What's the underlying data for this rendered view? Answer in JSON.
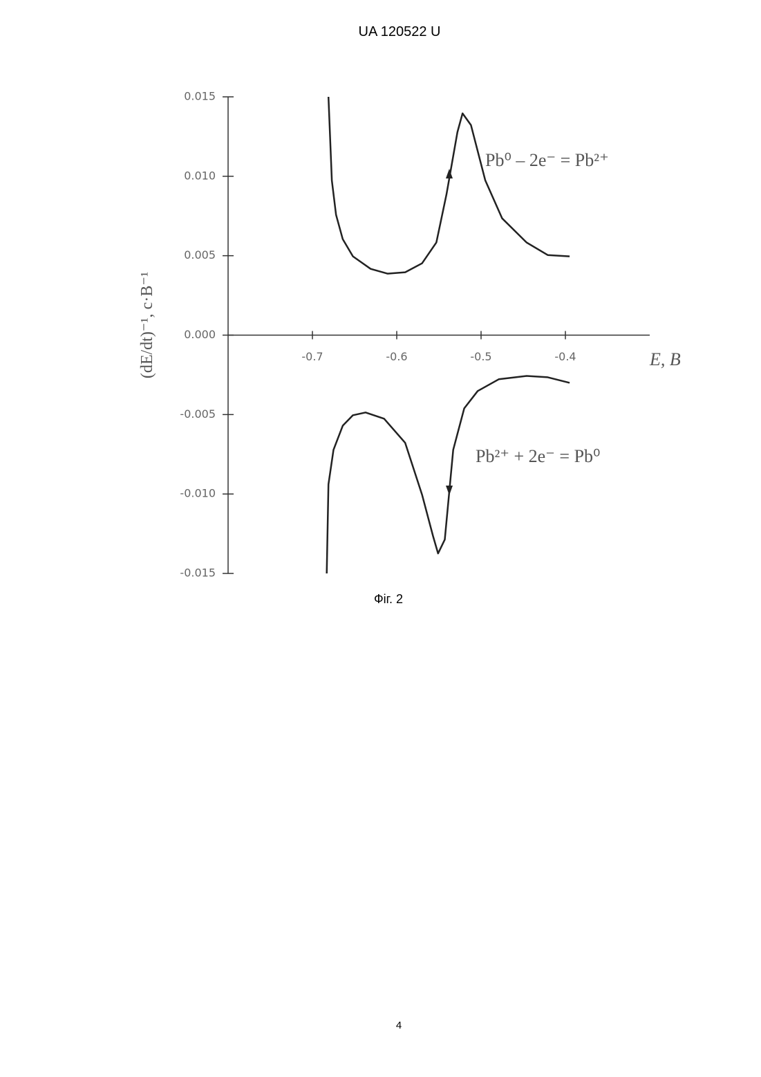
{
  "header": "UA   120522   U",
  "caption": "Фіг. 2",
  "page_number": "4",
  "chart_data": {
    "type": "line",
    "x_label": "E, B",
    "y_label": "(dE/dt)⁻¹, с·В⁻¹",
    "annotations": [
      "Pb⁰ – 2e⁻ = Pb²⁺",
      "Pb²⁺ + 2e⁻ = Pb⁰"
    ],
    "xlim": [
      -0.8,
      -0.3
    ],
    "xticks": [
      -0.7,
      -0.6,
      -0.5,
      -0.4
    ],
    "ylim": [
      -0.015,
      0.015
    ],
    "yticks": [
      0.015,
      {
        "value": 0.01,
        "label": "0.010"
      },
      0.005,
      {
        "value": 0,
        "label": "0.000"
      },
      -0.005,
      {
        "value": -0.01,
        "label": "-0.010"
      },
      -0.015
    ],
    "series": [
      {
        "color": "#222222",
        "x": [
          -0.681,
          -0.677,
          -0.672,
          -0.664,
          -0.652,
          -0.631,
          -0.611,
          -0.59,
          -0.57,
          -0.553,
          -0.541,
          -0.528,
          -0.522,
          -0.512,
          -0.495,
          -0.475,
          -0.446,
          -0.421,
          -0.395
        ],
        "values": [
          0.015,
          0.00974,
          0.00757,
          0.00604,
          0.00496,
          0.00417,
          0.00387,
          0.00396,
          0.00452,
          0.00583,
          0.00887,
          0.01278,
          0.01396,
          0.01322,
          0.00974,
          0.00735,
          0.00583,
          0.00504,
          0.00496
        ]
      },
      {
        "color": "#222222",
        "x": [
          -0.683,
          -0.681,
          -0.675,
          -0.664,
          -0.652,
          -0.637,
          -0.615,
          -0.59,
          -0.57,
          -0.557,
          -0.551,
          -0.543,
          -0.533,
          -0.52,
          -0.504,
          -0.479,
          -0.446,
          -0.421,
          -0.395
        ],
        "values": [
          -0.015,
          -0.00939,
          -0.00722,
          -0.0057,
          -0.00504,
          -0.00487,
          -0.00526,
          -0.00678,
          -0.01004,
          -0.01265,
          -0.01374,
          -0.01287,
          -0.00722,
          -0.00461,
          -0.00352,
          -0.00278,
          -0.00257,
          -0.00265,
          -0.003
        ]
      }
    ]
  }
}
